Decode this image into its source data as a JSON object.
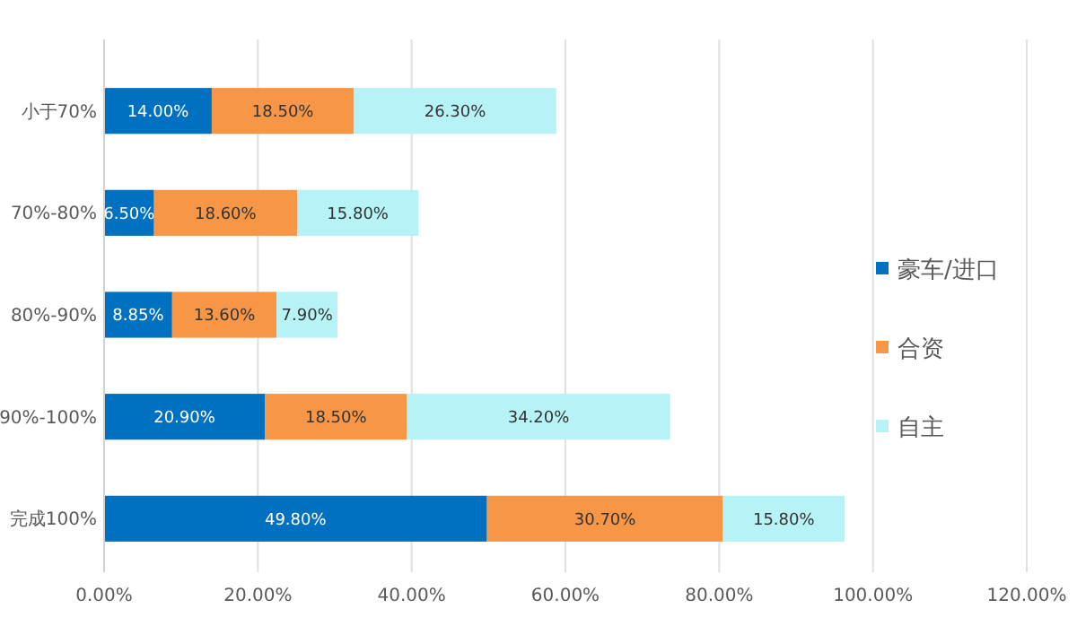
{
  "chart_data": {
    "type": "bar",
    "orientation": "horizontal",
    "stacked": true,
    "categories": [
      "小于70%",
      "70%-80%",
      "80%-90%",
      "90%-100%",
      "完成100%"
    ],
    "series": [
      {
        "name": "豪车/进口",
        "color": "#0070c0",
        "values": [
          14,
          6.5,
          8.85,
          20.9,
          49.8
        ],
        "value_labels": [
          "14.00%",
          "6.50%",
          "8.85%",
          "20.90%",
          "49.80%"
        ]
      },
      {
        "name": "合资",
        "color": "#f79646",
        "values": [
          18.5,
          18.6,
          13.6,
          18.5,
          30.7
        ],
        "value_labels": [
          "18.50%",
          "18.60%",
          "13.60%",
          "18.50%",
          "30.70%"
        ]
      },
      {
        "name": "自主",
        "color": "#b7f2f7",
        "values": [
          26.3,
          15.8,
          7.9,
          34.2,
          15.8
        ],
        "value_labels": [
          "26.30%",
          "15.80%",
          "7.90%",
          "34.20%",
          "15.80%"
        ]
      }
    ],
    "xlim": [
      0,
      120
    ],
    "xticks": [
      {
        "value": 0,
        "label": "0.00%"
      },
      {
        "value": 20,
        "label": "20.00%"
      },
      {
        "value": 40,
        "label": "40.00%"
      },
      {
        "value": 60,
        "label": "60.00%"
      },
      {
        "value": 80,
        "label": "80.00%"
      },
      {
        "value": 100,
        "label": "100.00%"
      },
      {
        "value": 120,
        "label": "120.00%"
      }
    ],
    "grid": "x",
    "legend": "right"
  }
}
